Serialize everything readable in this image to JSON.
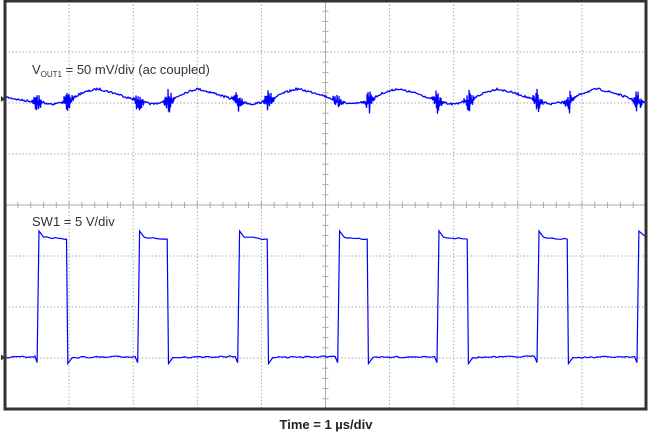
{
  "chart_data": {
    "type": "line",
    "title": "",
    "xlabel": "Time = 1 µs/div",
    "x_unit": "µs",
    "xlim": [
      0,
      10
    ],
    "grid": true,
    "grid_divisions": {
      "x": 10,
      "y": 8
    },
    "series": [
      {
        "name": "VOUT1",
        "label_main": "V",
        "label_sub": "OUT1",
        "label_rest": " = 50 mV/div (ac coupled)",
        "scale_per_div": 50,
        "unit": "mV",
        "color": "#0000ff",
        "switching_edges_us": [
          0.5,
          0.98,
          2.07,
          2.55,
          3.63,
          4.11,
          5.19,
          5.67,
          6.74,
          7.23,
          8.3,
          8.79,
          9.86
        ],
        "points": [
          [
            0,
            2
          ],
          [
            0.25,
            -1
          ],
          [
            0.5,
            -3
          ],
          [
            0.75,
            -5
          ],
          [
            0.98,
            -2
          ],
          [
            1.2,
            6
          ],
          [
            1.45,
            10
          ],
          [
            1.75,
            5
          ],
          [
            2.07,
            -2
          ],
          [
            2.3,
            -5
          ],
          [
            2.55,
            -2
          ],
          [
            2.8,
            6
          ],
          [
            3.0,
            10
          ],
          [
            3.3,
            5
          ],
          [
            3.63,
            -2
          ],
          [
            3.85,
            -5
          ],
          [
            4.11,
            -2
          ],
          [
            4.35,
            6
          ],
          [
            4.56,
            10
          ],
          [
            4.9,
            5
          ],
          [
            5.19,
            -2
          ],
          [
            5.42,
            -5
          ],
          [
            5.67,
            -2
          ],
          [
            5.9,
            6
          ],
          [
            6.12,
            10
          ],
          [
            6.45,
            5
          ],
          [
            6.74,
            -2
          ],
          [
            6.98,
            -5
          ],
          [
            7.23,
            -2
          ],
          [
            7.47,
            6
          ],
          [
            7.68,
            10
          ],
          [
            8.0,
            5
          ],
          [
            8.3,
            -2
          ],
          [
            8.53,
            -5
          ],
          [
            8.79,
            -2
          ],
          [
            9.02,
            6
          ],
          [
            9.24,
            10
          ],
          [
            9.55,
            5
          ],
          [
            9.86,
            -2
          ],
          [
            10,
            -4
          ]
        ]
      },
      {
        "name": "SW1",
        "label_rest": "SW1 = 5 V/div",
        "scale_per_div": 5,
        "unit": "V",
        "color": "#0000ff",
        "points": [
          [
            0,
            0
          ],
          [
            0.47,
            0.1
          ],
          [
            0.5,
            -0.5
          ],
          [
            0.53,
            12.4
          ],
          [
            0.6,
            11.8
          ],
          [
            0.96,
            11.6
          ],
          [
            0.98,
            -0.6
          ],
          [
            1.05,
            0
          ],
          [
            2.03,
            0.1
          ],
          [
            2.07,
            -0.5
          ],
          [
            2.1,
            12.4
          ],
          [
            2.17,
            11.8
          ],
          [
            2.53,
            11.6
          ],
          [
            2.55,
            -0.6
          ],
          [
            2.62,
            0
          ],
          [
            3.59,
            0.1
          ],
          [
            3.63,
            -0.5
          ],
          [
            3.66,
            12.4
          ],
          [
            3.73,
            11.8
          ],
          [
            4.09,
            11.6
          ],
          [
            4.11,
            -0.6
          ],
          [
            4.18,
            0
          ],
          [
            5.15,
            0.1
          ],
          [
            5.19,
            -0.5
          ],
          [
            5.22,
            12.4
          ],
          [
            5.29,
            11.8
          ],
          [
            5.65,
            11.6
          ],
          [
            5.67,
            -0.6
          ],
          [
            5.74,
            0
          ],
          [
            6.7,
            0.1
          ],
          [
            6.74,
            -0.5
          ],
          [
            6.77,
            12.4
          ],
          [
            6.84,
            11.8
          ],
          [
            7.21,
            11.6
          ],
          [
            7.23,
            -0.6
          ],
          [
            7.3,
            0
          ],
          [
            8.26,
            0.1
          ],
          [
            8.3,
            -0.5
          ],
          [
            8.33,
            12.4
          ],
          [
            8.4,
            11.8
          ],
          [
            8.77,
            11.6
          ],
          [
            8.79,
            -0.6
          ],
          [
            8.86,
            0
          ],
          [
            9.82,
            0.1
          ],
          [
            9.86,
            -0.5
          ],
          [
            9.89,
            12.4
          ],
          [
            10,
            11.8
          ]
        ]
      }
    ]
  }
}
